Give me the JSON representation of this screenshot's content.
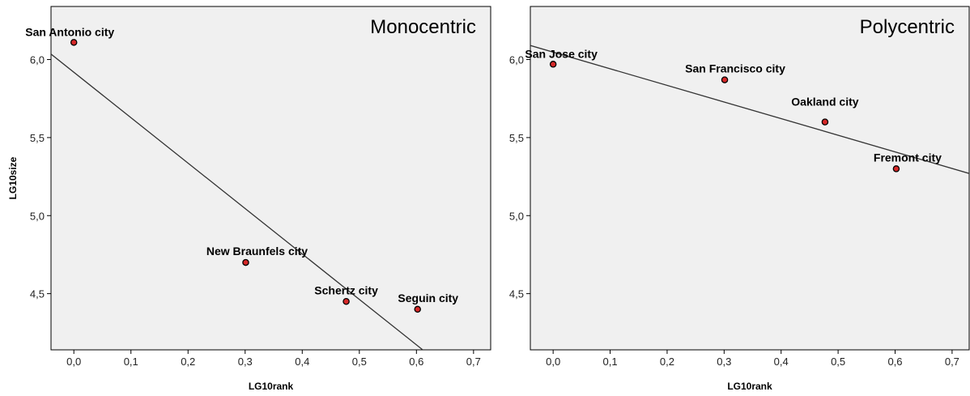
{
  "chart_data": [
    {
      "type": "scatter",
      "title": "Monocentric",
      "xlabel": "LG10rank",
      "ylabel": "LG10size",
      "xlim": [
        -0.04,
        0.73
      ],
      "ylim": [
        4.14,
        6.34
      ],
      "xticks": [
        "0,0",
        "0,1",
        "0,2",
        "0,3",
        "0,4",
        "0,5",
        "0,6",
        "0,7"
      ],
      "xtick_values": [
        0.0,
        0.1,
        0.2,
        0.3,
        0.4,
        0.5,
        0.6,
        0.7
      ],
      "yticks": [
        "6,0",
        "5,5",
        "5,0",
        "4,5"
      ],
      "ytick_values": [
        6.0,
        5.5,
        5.0,
        4.5
      ],
      "points": [
        {
          "label": "San Antonio city",
          "x": 0.0,
          "y": 6.11
        },
        {
          "label": "New Braunfels city",
          "x": 0.301,
          "y": 4.7
        },
        {
          "label": "Schertz city",
          "x": 0.477,
          "y": 4.45
        },
        {
          "label": "Seguin city",
          "x": 0.602,
          "y": 4.4
        }
      ],
      "fit_line": {
        "x": [
          -0.04,
          0.611
        ],
        "y": [
          6.035,
          4.14
        ]
      },
      "grid": false,
      "legend": "none"
    },
    {
      "type": "scatter",
      "title": "Polycentric",
      "xlabel": "LG10rank",
      "ylabel": "",
      "xlim": [
        -0.04,
        0.73
      ],
      "ylim": [
        4.14,
        6.34
      ],
      "xticks": [
        "0,0",
        "0,1",
        "0,2",
        "0,3",
        "0,4",
        "0,5",
        "0,6",
        "0,7"
      ],
      "xtick_values": [
        0.0,
        0.1,
        0.2,
        0.3,
        0.4,
        0.5,
        0.6,
        0.7
      ],
      "yticks": [
        "6,0",
        "5,5",
        "5,0",
        "4,5"
      ],
      "ytick_values": [
        6.0,
        5.5,
        5.0,
        4.5
      ],
      "points": [
        {
          "label": "San Jose city",
          "x": 0.0,
          "y": 5.97
        },
        {
          "label": "San Francisco city",
          "x": 0.301,
          "y": 5.87
        },
        {
          "label": "Oakland city",
          "x": 0.477,
          "y": 5.6
        },
        {
          "label": "Fremont city",
          "x": 0.602,
          "y": 5.3
        }
      ],
      "fit_line": {
        "x": [
          -0.04,
          0.73
        ],
        "y": [
          6.09,
          5.27
        ]
      },
      "grid": false,
      "legend": "none"
    }
  ]
}
